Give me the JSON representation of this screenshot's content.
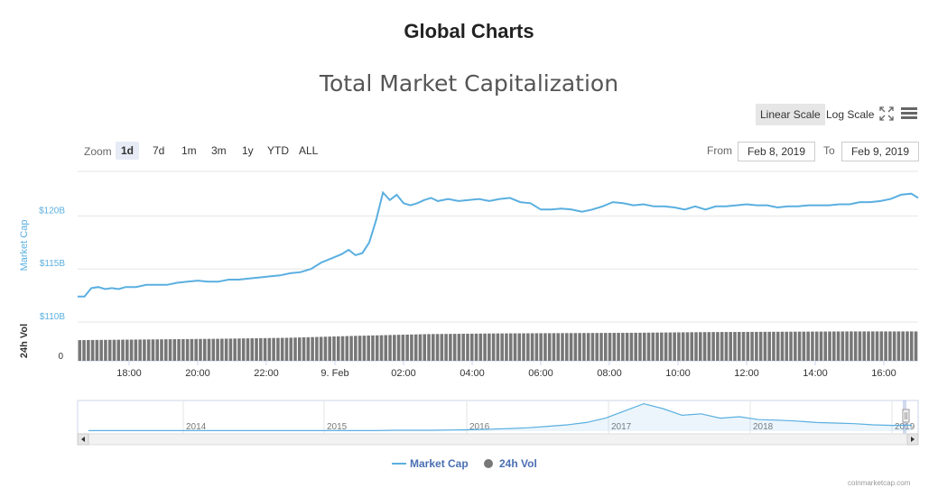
{
  "page": {
    "heading": "Global Charts",
    "credit": "coinmarketcap.com"
  },
  "toolbar": {
    "linear_label": "Linear Scale",
    "log_label": "Log Scale",
    "zoom_label": "Zoom",
    "zoom_buttons": [
      "1d",
      "7d",
      "1m",
      "3m",
      "1y",
      "YTD",
      "ALL"
    ],
    "zoom_active": "1d",
    "from_label": "From",
    "from_value": "Feb 8, 2019",
    "to_label": "To",
    "to_value": "Feb 9, 2019"
  },
  "icons": {
    "fullscreen": "fullscreen-icon",
    "menu": "hamburger-menu-icon",
    "scroll_left": "arrow-left-icon",
    "scroll_right": "arrow-right-icon",
    "navigator_handle": "navigator-handle-icon",
    "legend_vol": "circle-marker-icon"
  },
  "colors": {
    "market_cap": "#5aafe0",
    "volume": "#777777",
    "legend_text": "#4a6fb3"
  },
  "chart_data": {
    "type": "line",
    "title": "Total Market Capitalization",
    "xlabel": "",
    "ylabel": "Market Cap",
    "scale": "linear",
    "x_ticks": [
      "18:00",
      "20:00",
      "22:00",
      "9. Feb",
      "02:00",
      "04:00",
      "06:00",
      "08:00",
      "10:00",
      "12:00",
      "14:00",
      "16:00"
    ],
    "y_ticks": [
      "$120B",
      "$115B",
      "$110B"
    ],
    "ylim": [
      110,
      124.2
    ],
    "yunit": "B USD",
    "xlim": [
      16.5,
      41
    ],
    "legend": {
      "position": "bottom-center",
      "entries": [
        "Market Cap",
        "24h Vol"
      ]
    },
    "grid": true,
    "series": [
      {
        "name": "Market Cap",
        "x": [
          16.5,
          16.7,
          16.9,
          17.1,
          17.3,
          17.5,
          17.7,
          17.9,
          18.2,
          18.5,
          18.8,
          19.1,
          19.4,
          19.7,
          20,
          20.3,
          20.6,
          20.9,
          21.2,
          21.5,
          21.8,
          22.1,
          22.4,
          22.7,
          23,
          23.3,
          23.6,
          23.9,
          24.2,
          24.4,
          24.6,
          24.8,
          25,
          25.2,
          25.4,
          25.6,
          25.8,
          26,
          26.2,
          26.4,
          26.6,
          26.8,
          27,
          27.3,
          27.6,
          27.9,
          28.2,
          28.5,
          28.8,
          29.1,
          29.4,
          29.7,
          30,
          30.3,
          30.6,
          30.9,
          31.2,
          31.5,
          31.8,
          32.1,
          32.4,
          32.7,
          33,
          33.3,
          33.6,
          33.9,
          34.2,
          34.5,
          34.8,
          35.1,
          35.4,
          35.7,
          36,
          36.3,
          36.6,
          36.9,
          37.2,
          37.5,
          37.8,
          38.1,
          38.4,
          38.7,
          39,
          39.3,
          39.6,
          39.9,
          40.2,
          40.5,
          40.8,
          41
        ],
        "values": [
          112.4,
          112.4,
          113.2,
          113.3,
          113.1,
          113.2,
          113.1,
          113.3,
          113.3,
          113.5,
          113.5,
          113.5,
          113.7,
          113.8,
          113.9,
          113.8,
          113.8,
          114.0,
          114.0,
          114.1,
          114.2,
          114.3,
          114.4,
          114.6,
          114.7,
          115.0,
          115.6,
          116.0,
          116.4,
          116.8,
          116.3,
          116.5,
          117.5,
          119.6,
          122.2,
          121.5,
          122.0,
          121.2,
          121.0,
          121.2,
          121.5,
          121.7,
          121.4,
          121.6,
          121.4,
          121.5,
          121.6,
          121.4,
          121.6,
          121.7,
          121.3,
          121.2,
          120.6,
          120.6,
          120.7,
          120.6,
          120.4,
          120.6,
          120.9,
          121.3,
          121.2,
          121.0,
          121.1,
          120.9,
          120.9,
          120.8,
          120.6,
          120.9,
          120.6,
          120.9,
          120.9,
          121.0,
          121.1,
          121.0,
          121.0,
          120.8,
          120.9,
          120.9,
          121.0,
          121.0,
          121.0,
          121.1,
          121.1,
          121.3,
          121.3,
          121.4,
          121.6,
          122.0,
          122.1,
          121.7
        ]
      },
      {
        "name": "24h Vol",
        "x_start": 16.5,
        "x_end": 41,
        "bars": 195,
        "values_relative": [
          0.62,
          0.64,
          0.66,
          0.69,
          0.75,
          0.8,
          0.82,
          0.83,
          0.84,
          0.86,
          0.87,
          0.88,
          0.88
        ],
        "y_ticks": [
          "0"
        ],
        "ylabel": "24h Vol"
      }
    ],
    "navigator": {
      "labels": [
        "2014",
        "2015",
        "2016",
        "2017",
        "2018",
        "2019"
      ],
      "values": [
        0.02,
        0.02,
        0.02,
        0.02,
        0.02,
        0.02,
        0.02,
        0.02,
        0.02,
        0.02,
        0.02,
        0.02,
        0.02,
        0.02,
        0.02,
        0.02,
        0.03,
        0.03,
        0.03,
        0.04,
        0.05,
        0.07,
        0.09,
        0.12,
        0.17,
        0.22,
        0.3,
        0.45,
        0.7,
        0.95,
        0.78,
        0.55,
        0.6,
        0.45,
        0.5,
        0.4,
        0.38,
        0.35,
        0.3,
        0.28,
        0.26,
        0.22,
        0.2,
        0.21
      ]
    }
  }
}
